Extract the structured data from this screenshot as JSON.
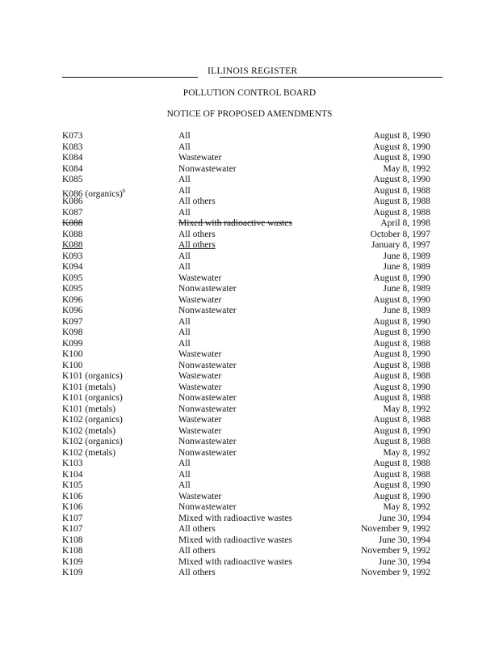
{
  "header": {
    "register": "ILLINOIS REGISTER",
    "board": "POLLUTION CONTROL BOARD",
    "notice": "NOTICE OF PROPOSED AMENDMENTS"
  },
  "rows": [
    {
      "code": "K073",
      "type": "All",
      "date": "August 8, 1990"
    },
    {
      "code": "K083",
      "type": "All",
      "date": "August 8, 1990"
    },
    {
      "code": "K084",
      "type": "Wastewater",
      "date": "August 8, 1990"
    },
    {
      "code": "K084",
      "type": "Nonwastewater",
      "date": "May 8, 1992"
    },
    {
      "code": "K085",
      "type": "All",
      "date": "August 8, 1990"
    },
    {
      "code": "K086 (organics)",
      "sup": "b",
      "type": "All",
      "date": "August 8, 1988"
    },
    {
      "code": "K086",
      "type": "All others",
      "date": "August 8, 1988"
    },
    {
      "code": "K087",
      "type": "All",
      "date": "August 8, 1988"
    },
    {
      "code": "K088",
      "type": "Mixed with radioactive wastes",
      "date": "April 8, 1998",
      "style": "strike"
    },
    {
      "code": "K088",
      "type": "All others",
      "date": "October 8, 1997"
    },
    {
      "code": "K088",
      "type": "All others",
      "date": "January 8, 1997",
      "style": "under"
    },
    {
      "code": "K093",
      "type": "All",
      "date": "June 8, 1989"
    },
    {
      "code": "K094",
      "type": "All",
      "date": "June 8, 1989"
    },
    {
      "code": "K095",
      "type": "Wastewater",
      "date": "August 8, 1990"
    },
    {
      "code": "K095",
      "type": "Nonwastewater",
      "date": "June 8, 1989"
    },
    {
      "code": "K096",
      "type": "Wastewater",
      "date": "August 8, 1990"
    },
    {
      "code": "K096",
      "type": "Nonwastewater",
      "date": "June 8, 1989"
    },
    {
      "code": "K097",
      "type": "All",
      "date": "August 8, 1990"
    },
    {
      "code": "K098",
      "type": "All",
      "date": "August 8, 1990"
    },
    {
      "code": "K099",
      "type": "All",
      "date": "August 8, 1988"
    },
    {
      "code": "K100",
      "type": "Wastewater",
      "date": "August 8, 1990"
    },
    {
      "code": "K100",
      "type": "Nonwastewater",
      "date": "August 8, 1988"
    },
    {
      "code": "K101 (organics)",
      "type": "Wastewater",
      "date": "August 8, 1988"
    },
    {
      "code": "K101 (metals)",
      "type": "Wastewater",
      "date": "August 8, 1990"
    },
    {
      "code": "K101 (organics)",
      "type": "Nonwastewater",
      "date": "August 8, 1988"
    },
    {
      "code": "K101 (metals)",
      "type": "Nonwastewater",
      "date": "May 8, 1992"
    },
    {
      "code": "K102 (organics)",
      "type": "Wastewater",
      "date": "August 8, 1988"
    },
    {
      "code": "K102 (metals)",
      "type": "Wastewater",
      "date": "August 8, 1990"
    },
    {
      "code": "K102 (organics)",
      "type": "Nonwastewater",
      "date": "August 8, 1988"
    },
    {
      "code": "K102 (metals)",
      "type": "Nonwastewater",
      "date": "May 8, 1992"
    },
    {
      "code": "K103",
      "type": "All",
      "date": "August 8, 1988"
    },
    {
      "code": "K104",
      "type": "All",
      "date": "August 8, 1988"
    },
    {
      "code": "K105",
      "type": "All",
      "date": "August 8, 1990"
    },
    {
      "code": "K106",
      "type": "Wastewater",
      "date": "August 8, 1990"
    },
    {
      "code": "K106",
      "type": "Nonwastewater",
      "date": "May 8, 1992"
    },
    {
      "code": "K107",
      "type": "Mixed with radioactive wastes",
      "date": "June 30, 1994"
    },
    {
      "code": "K107",
      "type": "All others",
      "date": "November 9, 1992"
    },
    {
      "code": "K108",
      "type": "Mixed with radioactive wastes",
      "date": "June 30, 1994"
    },
    {
      "code": "K108",
      "type": "All others",
      "date": "November 9, 1992"
    },
    {
      "code": "K109",
      "type": "Mixed with radioactive wastes",
      "date": "June 30, 1994"
    },
    {
      "code": "K109",
      "type": "All others",
      "date": "November 9, 1992"
    }
  ]
}
